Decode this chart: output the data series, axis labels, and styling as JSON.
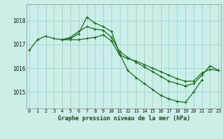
{
  "title": "Graphe pression niveau de la mer (hPa)",
  "background_color": "#cceee8",
  "plot_bg_color": "#cceee8",
  "grid_color": "#99cccc",
  "line_color": "#1a6b1a",
  "marker_color": "#1a6b1a",
  "x_ticks": [
    0,
    1,
    2,
    3,
    4,
    5,
    6,
    7,
    8,
    9,
    10,
    11,
    12,
    13,
    14,
    15,
    16,
    17,
    18,
    19,
    20,
    21,
    22,
    23
  ],
  "xlim": [
    -0.3,
    23.3
  ],
  "ylim": [
    1014.3,
    1018.7
  ],
  "yticks": [
    1015,
    1016,
    1017,
    1018
  ],
  "series1": [
    1016.75,
    1017.2,
    1017.35,
    1017.25,
    1017.2,
    1017.2,
    1017.2,
    1017.25,
    1017.3,
    1017.4,
    1017.15,
    1016.55,
    1016.4,
    1016.3,
    1016.15,
    1016.0,
    1015.85,
    1015.7,
    1015.55,
    1015.45,
    1015.45,
    1015.8,
    1015.95,
    1015.9
  ],
  "series2": [
    null,
    null,
    null,
    null,
    1017.2,
    1017.25,
    1017.45,
    1018.15,
    1017.9,
    1017.75,
    1017.55,
    1016.6,
    1015.9,
    1015.6,
    1015.35,
    1015.1,
    1014.85,
    1014.7,
    1014.6,
    1014.55,
    1015.0,
    1015.5,
    null,
    null
  ],
  "series3": [
    null,
    null,
    null,
    null,
    1017.2,
    1017.3,
    1017.55,
    1017.75,
    1017.65,
    1017.6,
    1017.3,
    1016.7,
    1016.45,
    1016.25,
    1016.05,
    1015.85,
    1015.65,
    1015.45,
    1015.35,
    1015.25,
    1015.35,
    1015.7,
    1016.1,
    1015.9
  ]
}
